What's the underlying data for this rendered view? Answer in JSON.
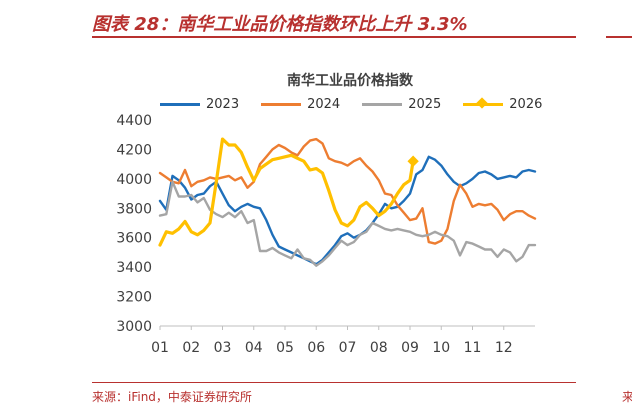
{
  "figure": {
    "title": "图表 28：南华工业品价格指数环比上升 3.3%",
    "source": "来源：iFind，中泰证券研究所",
    "edge_fragment": "来"
  },
  "colors": {
    "accent": "#b8312f",
    "s2023": "#1f6fba",
    "s2024": "#ed7d31",
    "s2025": "#a5a5a5",
    "s2026": "#ffc000"
  },
  "chart_data": {
    "type": "line",
    "title": "南华工业品价格指数",
    "xlabel": "",
    "ylabel": "",
    "ylim": [
      3000,
      4400
    ],
    "yticks": [
      3000,
      3200,
      3400,
      3600,
      3800,
      4000,
      4200,
      4400
    ],
    "xticks": [
      "01",
      "02",
      "03",
      "04",
      "05",
      "06",
      "07",
      "08",
      "09",
      "10",
      "11",
      "12"
    ],
    "xrange": [
      1,
      13
    ],
    "grid": false,
    "legend": "top",
    "series": [
      {
        "name": "2023",
        "color_key": "s2023",
        "marker": "none",
        "x": [
          1.0,
          1.2,
          1.4,
          1.6,
          1.8,
          2.0,
          2.2,
          2.4,
          2.6,
          2.8,
          3.0,
          3.2,
          3.4,
          3.6,
          3.8,
          4.0,
          4.2,
          4.4,
          4.6,
          4.8,
          5.0,
          5.2,
          5.4,
          5.6,
          5.8,
          6.0,
          6.2,
          6.4,
          6.6,
          6.8,
          7.0,
          7.2,
          7.4,
          7.6,
          7.8,
          8.0,
          8.2,
          8.4,
          8.6,
          8.8,
          9.0,
          9.2,
          9.4,
          9.6,
          9.8,
          10.0,
          10.2,
          10.4,
          10.6,
          10.8,
          11.0,
          11.2,
          11.4,
          11.6,
          11.8,
          12.0,
          12.2,
          12.4,
          12.6,
          12.8,
          13.0
        ],
        "values": [
          3850,
          3790,
          4020,
          3990,
          3940,
          3860,
          3890,
          3900,
          3950,
          3980,
          3900,
          3820,
          3780,
          3810,
          3830,
          3810,
          3800,
          3720,
          3620,
          3540,
          3520,
          3500,
          3480,
          3460,
          3440,
          3420,
          3450,
          3500,
          3550,
          3610,
          3630,
          3600,
          3620,
          3650,
          3700,
          3760,
          3830,
          3800,
          3810,
          3850,
          3900,
          4030,
          4060,
          4150,
          4130,
          4090,
          4030,
          3980,
          3950,
          3970,
          4000,
          4040,
          4050,
          4030,
          4000,
          4010,
          4020,
          4010,
          4050,
          4060,
          4050
        ]
      },
      {
        "name": "2024",
        "color_key": "s2024",
        "marker": "none",
        "x": [
          1.0,
          1.2,
          1.4,
          1.6,
          1.8,
          2.0,
          2.2,
          2.4,
          2.6,
          2.8,
          3.0,
          3.2,
          3.4,
          3.6,
          3.8,
          4.0,
          4.2,
          4.4,
          4.6,
          4.8,
          5.0,
          5.2,
          5.4,
          5.6,
          5.8,
          6.0,
          6.2,
          6.4,
          6.6,
          6.8,
          7.0,
          7.2,
          7.4,
          7.6,
          7.8,
          8.0,
          8.2,
          8.4,
          8.6,
          8.8,
          9.0,
          9.2,
          9.4,
          9.6,
          9.8,
          10.0,
          10.2,
          10.4,
          10.6,
          10.8,
          11.0,
          11.2,
          11.4,
          11.6,
          11.8,
          12.0,
          12.2,
          12.4,
          12.6,
          12.8,
          13.0
        ],
        "values": [
          4040,
          4010,
          3980,
          3970,
          4060,
          3950,
          3980,
          3990,
          4010,
          4000,
          4010,
          4020,
          3990,
          4010,
          3940,
          3980,
          4100,
          4150,
          4200,
          4230,
          4210,
          4180,
          4160,
          4220,
          4260,
          4270,
          4240,
          4140,
          4120,
          4110,
          4090,
          4120,
          4140,
          4090,
          4050,
          3990,
          3900,
          3890,
          3820,
          3770,
          3720,
          3730,
          3800,
          3570,
          3560,
          3580,
          3660,
          3850,
          3960,
          3900,
          3810,
          3830,
          3820,
          3830,
          3790,
          3720,
          3760,
          3780,
          3780,
          3750,
          3730
        ]
      },
      {
        "name": "2025",
        "color_key": "s2025",
        "marker": "none",
        "x": [
          1.0,
          1.2,
          1.4,
          1.6,
          1.8,
          2.0,
          2.2,
          2.4,
          2.6,
          2.8,
          3.0,
          3.2,
          3.4,
          3.6,
          3.8,
          4.0,
          4.2,
          4.4,
          4.6,
          4.8,
          5.0,
          5.2,
          5.4,
          5.6,
          5.8,
          6.0,
          6.2,
          6.4,
          6.6,
          6.8,
          7.0,
          7.2,
          7.4,
          7.6,
          7.8,
          8.0,
          8.2,
          8.4,
          8.6,
          8.8,
          9.0,
          9.2,
          9.4,
          9.6,
          9.8,
          10.0,
          10.2,
          10.4,
          10.6,
          10.8,
          11.0,
          11.2,
          11.4,
          11.6,
          11.8,
          12.0,
          12.2,
          12.4,
          12.6,
          12.8,
          13.0
        ],
        "values": [
          3750,
          3760,
          3980,
          3880,
          3880,
          3890,
          3840,
          3870,
          3790,
          3760,
          3740,
          3770,
          3740,
          3780,
          3700,
          3720,
          3510,
          3510,
          3530,
          3500,
          3480,
          3460,
          3520,
          3460,
          3450,
          3410,
          3440,
          3480,
          3530,
          3580,
          3550,
          3570,
          3620,
          3640,
          3700,
          3680,
          3660,
          3650,
          3660,
          3650,
          3640,
          3620,
          3610,
          3620,
          3640,
          3620,
          3610,
          3580,
          3480,
          3570,
          3560,
          3540,
          3520,
          3520,
          3470,
          3520,
          3500,
          3440,
          3470,
          3550,
          3550
        ]
      },
      {
        "name": "2026",
        "color_key": "s2026",
        "marker": "diamond",
        "x": [
          1.0,
          1.2,
          1.4,
          1.6,
          1.8,
          2.0,
          2.2,
          2.4,
          2.6,
          2.8,
          3.0,
          3.2,
          3.4,
          3.6,
          3.8,
          4.0,
          4.2,
          4.4,
          4.6,
          4.8,
          5.0,
          5.2,
          5.4,
          5.6,
          5.8,
          6.0,
          6.2,
          6.4,
          6.6,
          6.8,
          7.0,
          7.2,
          7.4,
          7.6,
          7.8,
          8.0,
          8.2,
          8.4,
          8.6,
          8.8,
          9.0,
          9.1
        ],
        "values": [
          3550,
          3640,
          3630,
          3660,
          3710,
          3640,
          3620,
          3650,
          3700,
          3980,
          4270,
          4230,
          4230,
          4180,
          4080,
          3990,
          4070,
          4100,
          4130,
          4140,
          4150,
          4160,
          4140,
          4120,
          4060,
          4070,
          4040,
          3920,
          3790,
          3700,
          3680,
          3720,
          3810,
          3840,
          3800,
          3750,
          3780,
          3830,
          3900,
          3960,
          3990,
          4120
        ]
      }
    ]
  }
}
